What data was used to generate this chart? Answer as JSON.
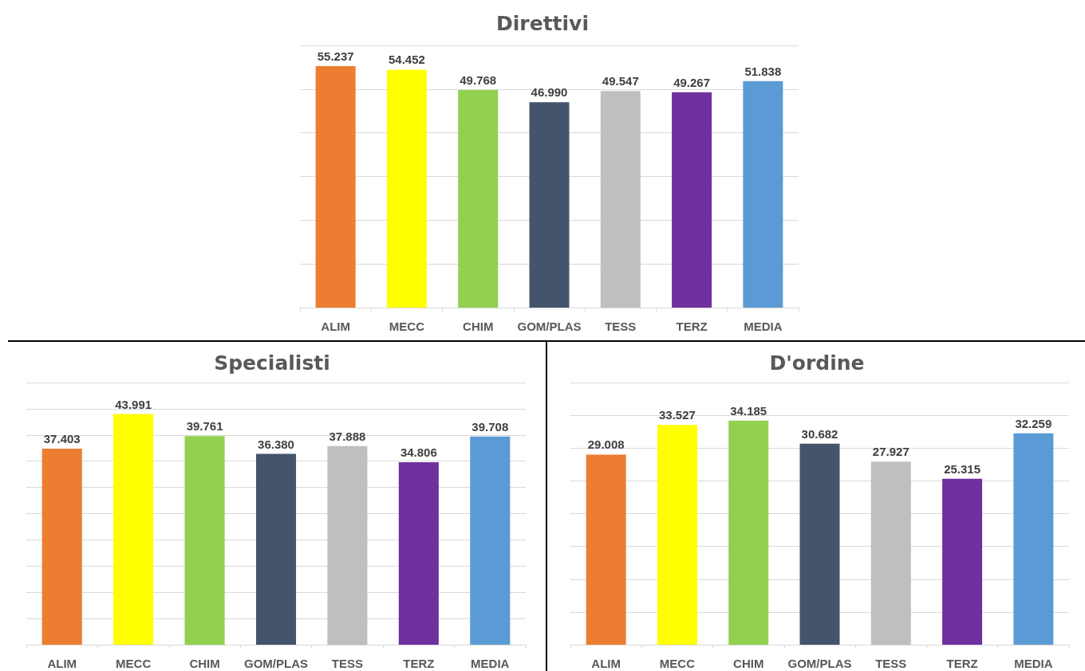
{
  "chart_data": [
    {
      "type": "bar",
      "title": "Direttivi",
      "categories": [
        "ALIM",
        "MECC",
        "CHIM",
        "GOM/PLAS",
        "TESS",
        "TERZ",
        "MEDIA"
      ],
      "values": [
        55237,
        54452,
        49768,
        46990,
        49547,
        49267,
        51838
      ],
      "value_labels": [
        "55.237",
        "54.452",
        "49.768",
        "46.990",
        "49.547",
        "49.267",
        "51.838"
      ],
      "colors": [
        "#ed7d31",
        "#ffff00",
        "#92d050",
        "#44546a",
        "#bfbfbf",
        "#7030a0",
        "#5b9bd5"
      ],
      "ylim": [
        0,
        60000
      ],
      "yticks": [
        0,
        10000,
        20000,
        30000,
        40000,
        50000,
        60000
      ],
      "grid": "y",
      "tick_labels": "x"
    },
    {
      "type": "bar",
      "title": "Specialisti",
      "categories": [
        "ALIM",
        "MECC",
        "CHIM",
        "GOM/PLAS",
        "TESS",
        "TERZ",
        "MEDIA"
      ],
      "values": [
        37403,
        43991,
        39761,
        36380,
        37888,
        34806,
        39708
      ],
      "value_labels": [
        "37.403",
        "43.991",
        "39.761",
        "36.380",
        "37.888",
        "34.806",
        "39.708"
      ],
      "colors": [
        "#ed7d31",
        "#ffff00",
        "#92d050",
        "#44546a",
        "#bfbfbf",
        "#7030a0",
        "#5b9bd5"
      ],
      "ylim": [
        0,
        50000
      ],
      "yticks": [
        0,
        5000,
        10000,
        15000,
        20000,
        25000,
        30000,
        35000,
        40000,
        45000,
        50000
      ],
      "grid": "y",
      "tick_labels": "x"
    },
    {
      "type": "bar",
      "title": "D'ordine",
      "categories": [
        "ALIM",
        "MECC",
        "CHIM",
        "GOM/PLAS",
        "TESS",
        "TERZ",
        "MEDIA"
      ],
      "values": [
        29008,
        33527,
        34185,
        30682,
        27927,
        25315,
        32259
      ],
      "value_labels": [
        "29.008",
        "33.527",
        "34.185",
        "30.682",
        "27.927",
        "25.315",
        "32.259"
      ],
      "colors": [
        "#ed7d31",
        "#ffff00",
        "#92d050",
        "#44546a",
        "#bfbfbf",
        "#7030a0",
        "#5b9bd5"
      ],
      "ylim": [
        0,
        40000
      ],
      "yticks": [
        0,
        5000,
        10000,
        15000,
        20000,
        25000,
        30000,
        35000,
        40000
      ],
      "grid": "y",
      "tick_labels": "x"
    }
  ]
}
